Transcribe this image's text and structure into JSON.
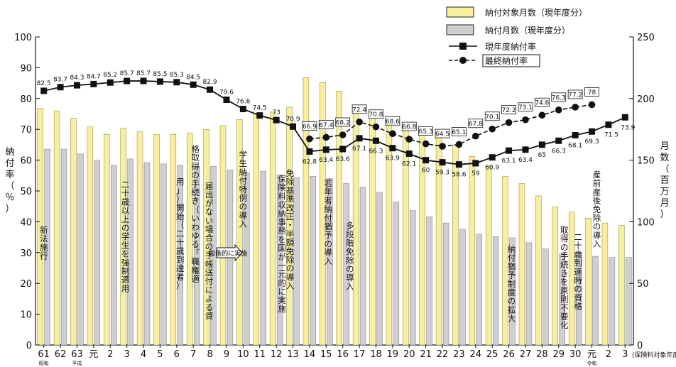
{
  "chart_data": {
    "type": "bar",
    "categories": [
      "61",
      "62",
      "63",
      "元",
      "2",
      "3",
      "4",
      "5",
      "6",
      "7",
      "8",
      "9",
      "10",
      "11",
      "12",
      "13",
      "14",
      "15",
      "16",
      "17",
      "18",
      "19",
      "20",
      "21",
      "22",
      "23",
      "24",
      "25",
      "26",
      "27",
      "28",
      "29",
      "30",
      "元",
      "2",
      "3"
    ],
    "era_labels": [
      "昭和",
      "平成",
      "令和"
    ],
    "x_axis_unit": "(保険料対象年度)",
    "left_axis": {
      "label": "納付率（％）",
      "ylim": [
        0,
        100
      ],
      "ticks": [
        0,
        10,
        20,
        30,
        40,
        50,
        60,
        70,
        80,
        90,
        100
      ]
    },
    "right_axis": {
      "label": "月数（百万月）",
      "ylim": [
        0,
        250
      ],
      "ticks": [
        0,
        50,
        100,
        150,
        200,
        250
      ]
    },
    "legend": [
      "納付対象月数（現年度分）",
      "納付月数（現年度分）",
      "現年度納付率",
      "最終納付率"
    ],
    "series": [
      {
        "name": "納付対象月数（現年度分）",
        "type": "bar",
        "axis": "right",
        "color": "#f7ef9e",
        "values": [
          192,
          190,
          184,
          177,
          171,
          176,
          173,
          171,
          171,
          172,
          175,
          178,
          183,
          188,
          189,
          193,
          217,
          213,
          206,
          191,
          187,
          182,
          178,
          173,
          169,
          162,
          153,
          145,
          137,
          131,
          121,
          112,
          108,
          103,
          99,
          97
        ]
      },
      {
        "name": "納付月数（現年度分）",
        "type": "bar",
        "axis": "right",
        "color": "#cfcfcf",
        "values": [
          159,
          159,
          155,
          150,
          146,
          151,
          148,
          147,
          146,
          145,
          145,
          142,
          140,
          141,
          138,
          136,
          137,
          135,
          131,
          128,
          124,
          116,
          109,
          104,
          99,
          94,
          90,
          88,
          87,
          83,
          78,
          74,
          75,
          72,
          71,
          71
        ]
      },
      {
        "name": "現年度納付率",
        "type": "line",
        "axis": "left",
        "marker": "square",
        "values": [
          82.5,
          83.7,
          84.3,
          84.7,
          85.2,
          85.7,
          85.7,
          85.5,
          85.3,
          84.5,
          82.9,
          79.6,
          76.6,
          74.5,
          73.0,
          70.9,
          62.8,
          63.4,
          63.6,
          67.1,
          66.3,
          63.9,
          62.1,
          60.0,
          59.3,
          58.6,
          59.0,
          60.9,
          63.1,
          63.4,
          65.0,
          66.3,
          68.1,
          69.3,
          71.5,
          73.9
        ]
      },
      {
        "name": "最終納付率",
        "type": "line",
        "axis": "left",
        "marker": "circle",
        "dashed": true,
        "values": [
          null,
          null,
          null,
          null,
          null,
          null,
          null,
          null,
          null,
          null,
          null,
          null,
          null,
          null,
          null,
          null,
          66.9,
          67.4,
          68.2,
          72.4,
          70.8,
          68.6,
          66.8,
          65.3,
          64.5,
          65.1,
          67.8,
          70.1,
          72.2,
          73.1,
          74.6,
          76.3,
          77.2,
          78.0,
          null,
          null
        ]
      }
    ],
    "annotations": [
      {
        "text": "新法施行"
      },
      {
        "text": "二十歳以上の学生を強制適用"
      },
      {
        "text": "届出がない場合の手帳送付による資格取得の手続き（いわゆる「職権適用」）開始（二十歳到達者）"
      },
      {
        "text": "段階的に実施"
      },
      {
        "text": "学生納付特例の導入"
      },
      {
        "text": "免除基準改正・半額免除の導入"
      },
      {
        "text": "保険料収納事務を国が一元的に実施"
      },
      {
        "text": "若年者納付猶予の導入"
      },
      {
        "text": "多段階免除の導入"
      },
      {
        "text": "納付猶予制度の拡大"
      },
      {
        "text": "二十歳到達時の資格取得の手続きを原則不要化"
      },
      {
        "text": "産前産後免除の導入"
      }
    ]
  }
}
